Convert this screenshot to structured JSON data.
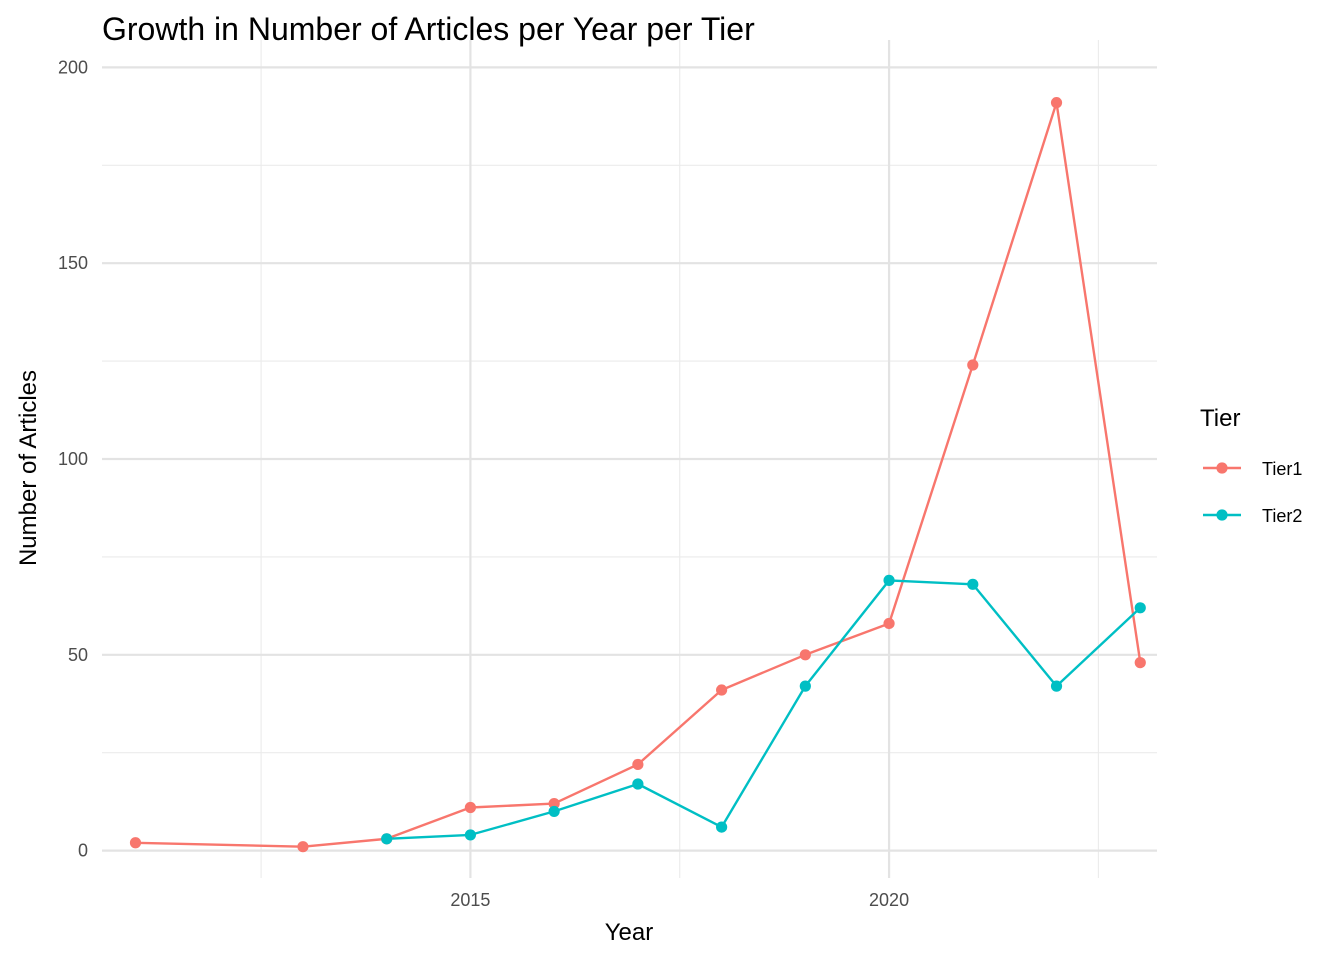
{
  "chart_data": {
    "type": "line",
    "title": "Growth in Number of Articles per Year per Tier",
    "xlabel": "Year",
    "ylabel": "Number of Articles",
    "xlim": [
      2010.6,
      2023.2
    ],
    "ylim": [
      -7,
      207
    ],
    "x_ticks": [
      2015,
      2020
    ],
    "y_ticks": [
      0,
      50,
      100,
      150,
      200
    ],
    "grid": true,
    "legend": {
      "title": "Tier",
      "position": "right"
    },
    "series": [
      {
        "name": "Tier1",
        "color": "#F8766D",
        "x": [
          2011,
          2013,
          2014,
          2015,
          2016,
          2017,
          2018,
          2019,
          2020,
          2021,
          2022,
          2023
        ],
        "y": [
          2,
          1,
          3,
          11,
          12,
          22,
          41,
          50,
          58,
          124,
          191,
          48
        ]
      },
      {
        "name": "Tier2",
        "color": "#00BFC4",
        "x": [
          2014,
          2015,
          2016,
          2017,
          2018,
          2019,
          2020,
          2021,
          2022,
          2023
        ],
        "y": [
          3,
          4,
          10,
          17,
          6,
          42,
          69,
          68,
          42,
          62
        ]
      }
    ]
  }
}
